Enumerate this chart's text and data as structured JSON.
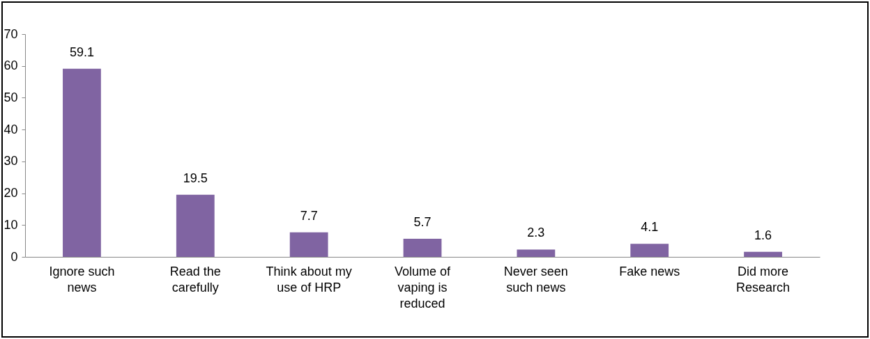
{
  "chart_data": {
    "type": "bar",
    "categories": [
      "Ignore such news",
      "Read the carefully",
      "Think about my use of HRP",
      "Volume of vaping is reduced",
      "Never seen such news",
      "Fake news",
      "Did more Research"
    ],
    "values": [
      59.1,
      19.5,
      7.7,
      5.7,
      2.3,
      4.1,
      1.6
    ],
    "color": "#8064a2",
    "ylim": [
      0,
      70
    ],
    "yticks": [
      0,
      10,
      20,
      30,
      40,
      50,
      60,
      70
    ],
    "grid": false,
    "data_labels": true
  }
}
